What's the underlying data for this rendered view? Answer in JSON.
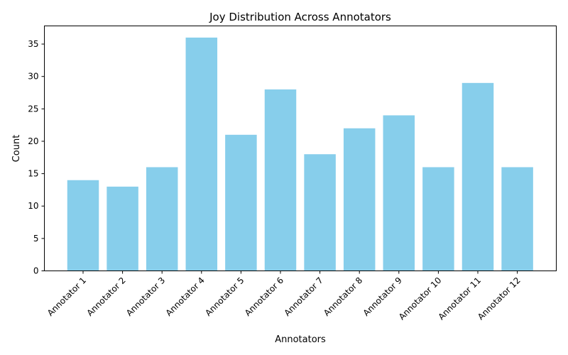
{
  "chart_data": {
    "type": "bar",
    "title": "Joy Distribution Across Annotators",
    "xlabel": "Annotators",
    "ylabel": "Count",
    "categories": [
      "Annotator 1",
      "Annotator 2",
      "Annotator 3",
      "Annotator 4",
      "Annotator 5",
      "Annotator 6",
      "Annotator 7",
      "Annotator 8",
      "Annotator 9",
      "Annotator 10",
      "Annotator 11",
      "Annotator 12"
    ],
    "values": [
      14,
      13,
      16,
      36,
      21,
      28,
      18,
      22,
      24,
      16,
      29,
      16
    ],
    "ylim": [
      0,
      37.8
    ],
    "yticks": [
      0,
      5,
      10,
      15,
      20,
      25,
      30,
      35
    ],
    "bar_color": "#87ceeb",
    "grid": false,
    "legend": "none"
  }
}
